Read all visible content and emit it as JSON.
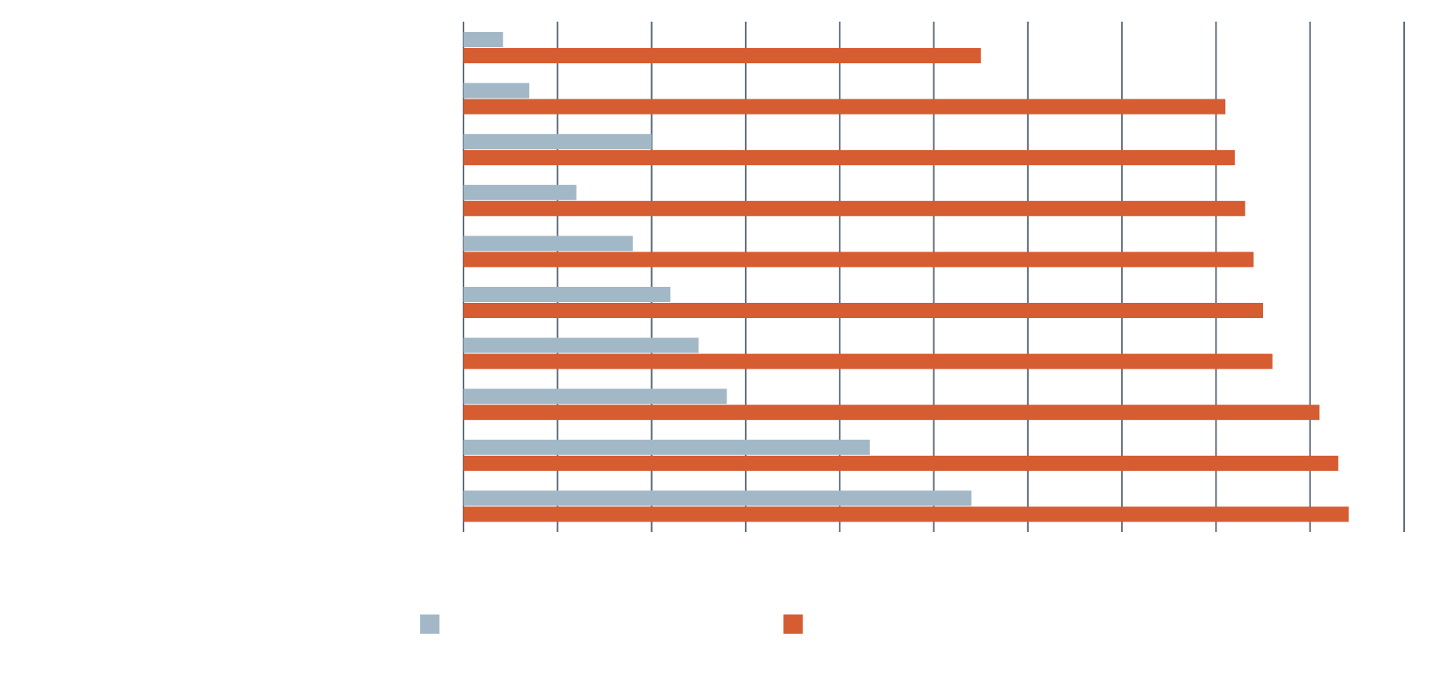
{
  "chart_data": {
    "type": "bar",
    "orientation": "horizontal",
    "title": "",
    "xlabel": "",
    "ylabel": "",
    "categories": [
      "",
      "",
      "",
      "",
      "",
      "",
      "",
      "",
      "",
      ""
    ],
    "xlim": [
      0,
      100
    ],
    "grid": true,
    "legend_position": "bottom",
    "series": [
      {
        "name": "",
        "color": "#a3b8c6",
        "values": [
          4.2,
          7.0,
          20.0,
          12.0,
          18.0,
          22.0,
          25.0,
          28.0,
          43.2,
          54.0
        ]
      },
      {
        "name": "",
        "color": "#d65c31",
        "values": [
          55.0,
          81.0,
          82.0,
          83.1,
          84.0,
          85.0,
          86.0,
          91.0,
          93.0,
          94.1
        ]
      }
    ],
    "gridline_color": "#5a6b78"
  }
}
